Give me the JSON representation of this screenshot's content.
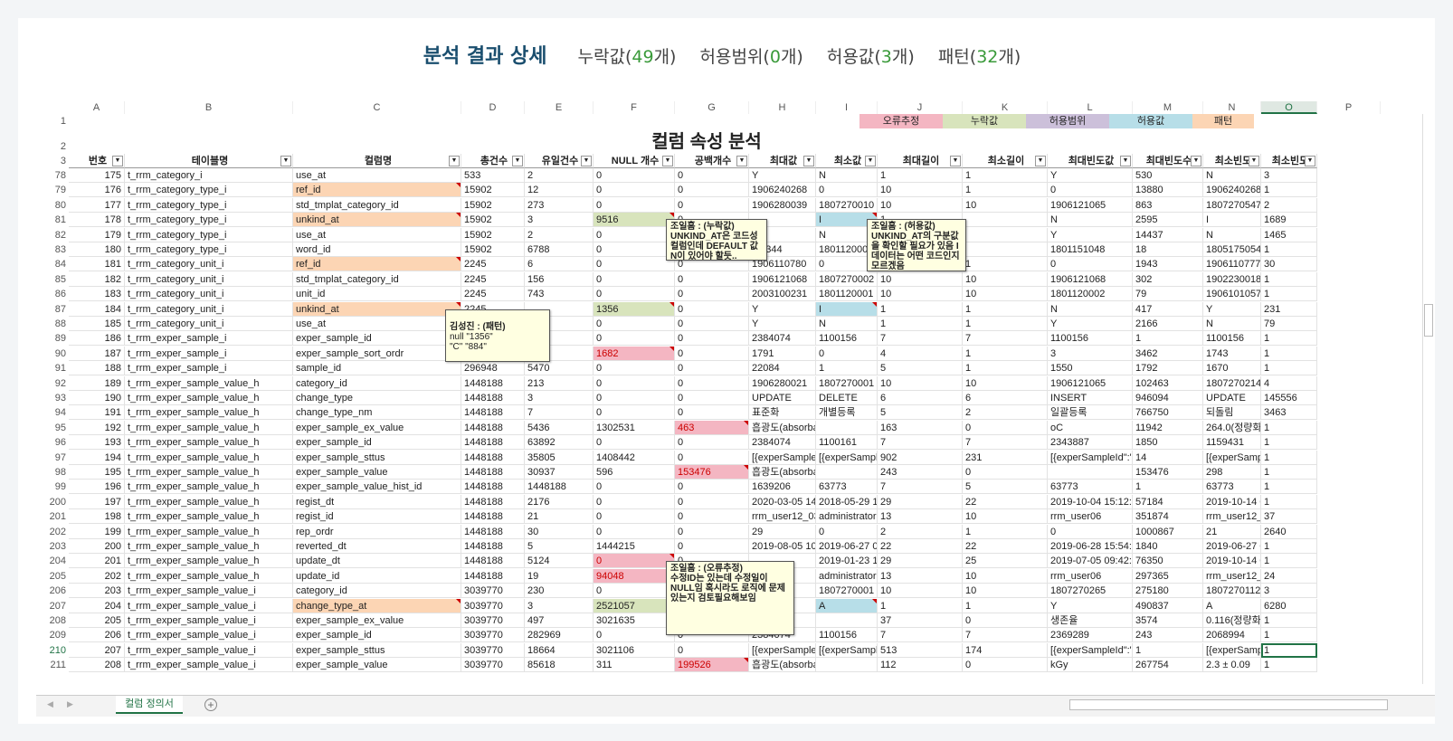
{
  "header": {
    "title": "분석 결과 상세",
    "stats": [
      {
        "label": "누락값(",
        "value": "49",
        "suffix": "개)"
      },
      {
        "label": "허용범위(",
        "value": "0",
        "suffix": "개)"
      },
      {
        "label": "허용값(",
        "value": "3",
        "suffix": "개)"
      },
      {
        "label": "패턴(",
        "value": "32",
        "suffix": "개)"
      }
    ]
  },
  "sheet": {
    "columns": [
      "A",
      "B",
      "C",
      "D",
      "E",
      "F",
      "G",
      "H",
      "I",
      "J",
      "K",
      "L",
      "M",
      "N",
      "O",
      "P"
    ],
    "title": "컬럼 속성 분석",
    "legend": [
      "오류추정",
      "누락값",
      "허용범위",
      "허용값",
      "패턴"
    ],
    "headers": [
      "번호",
      "테이블명",
      "컬럼명",
      "총건수",
      "유일건수",
      "NULL 개수",
      "공백개수",
      "최대값",
      "최소값",
      "최대길이",
      "최소길이",
      "최대빈도값",
      "최대빈도수",
      "최소빈도",
      "최소빈도"
    ],
    "row_label_1": "1",
    "row_label_2": "2",
    "row_label_3": "3",
    "rows": [
      {
        "r": "78",
        "v": [
          "175",
          "t_rrm_category_i",
          "use_at",
          "533",
          "2",
          "0",
          "0",
          "Y",
          "N",
          "1",
          "1",
          "Y",
          "530",
          "N",
          "3"
        ]
      },
      {
        "r": "79",
        "v": [
          "176",
          "t_rrm_category_type_i",
          "ref_id",
          "15902",
          "12",
          "0",
          "0",
          "1906240268",
          "0",
          "10",
          "1",
          "0",
          "13880",
          "1906240268",
          "1"
        ]
      },
      {
        "r": "80",
        "v": [
          "177",
          "t_rrm_category_type_i",
          "std_tmplat_category_id",
          "15902",
          "273",
          "0",
          "0",
          "1906280039",
          "1807270010",
          "10",
          "10",
          "1906121065",
          "863",
          "1807270547",
          "2"
        ]
      },
      {
        "r": "81",
        "v": [
          "178",
          "t_rrm_category_type_i",
          "unkind_at",
          "15902",
          "3",
          "9516",
          "0",
          "",
          "I",
          "1",
          "",
          "N",
          "2595",
          "I",
          "1689"
        ]
      },
      {
        "r": "82",
        "v": [
          "179",
          "t_rrm_category_type_i",
          "use_at",
          "15902",
          "2",
          "0",
          "0",
          "",
          "N",
          "1",
          "",
          "Y",
          "14437",
          "N",
          "1465"
        ]
      },
      {
        "r": "83",
        "v": [
          "180",
          "t_rrm_category_type_i",
          "word_id",
          "15902",
          "6788",
          "0",
          "0",
          "...2344",
          "1801120002",
          "10",
          "",
          "1801151048",
          "18",
          "1805175054",
          "1"
        ]
      },
      {
        "r": "84",
        "v": [
          "181",
          "t_rrm_category_unit_i",
          "ref_id",
          "2245",
          "6",
          "0",
          "0",
          "1906110780",
          "0",
          "10",
          "1",
          "0",
          "1943",
          "1906110777",
          "30"
        ]
      },
      {
        "r": "85",
        "v": [
          "182",
          "t_rrm_category_unit_i",
          "std_tmplat_category_id",
          "2245",
          "156",
          "0",
          "0",
          "1906121068",
          "1807270002",
          "10",
          "10",
          "1906121068",
          "302",
          "1902230018",
          "1"
        ]
      },
      {
        "r": "86",
        "v": [
          "183",
          "t_rrm_category_unit_i",
          "unit_id",
          "2245",
          "743",
          "0",
          "0",
          "2003100231",
          "1801120001",
          "10",
          "10",
          "1801120002",
          "79",
          "1906101057",
          "1"
        ]
      },
      {
        "r": "87",
        "v": [
          "184",
          "t_rrm_category_unit_i",
          "unkind_at",
          "2245",
          "",
          "1356",
          "0",
          "Y",
          "I",
          "1",
          "1",
          "N",
          "417",
          "Y",
          "231"
        ]
      },
      {
        "r": "88",
        "v": [
          "185",
          "t_rrm_category_unit_i",
          "use_at",
          "2245",
          "",
          "0",
          "0",
          "Y",
          "N",
          "1",
          "1",
          "Y",
          "2166",
          "N",
          "79"
        ]
      },
      {
        "r": "89",
        "v": [
          "186",
          "t_rrm_exper_sample_i",
          "exper_sample_id",
          "296948",
          "",
          "0",
          "0",
          "2384074",
          "1100156",
          "7",
          "7",
          "1100156",
          "1",
          "1100156",
          "1"
        ]
      },
      {
        "r": "90",
        "v": [
          "187",
          "t_rrm_exper_sample_i",
          "exper_sample_sort_ordr",
          "296948",
          "1792",
          "1682",
          "0",
          "1791",
          "0",
          "4",
          "1",
          "3",
          "3462",
          "1743",
          "1"
        ]
      },
      {
        "r": "91",
        "v": [
          "188",
          "t_rrm_exper_sample_i",
          "sample_id",
          "296948",
          "5470",
          "0",
          "0",
          "22084",
          "1",
          "5",
          "1",
          "1550",
          "1792",
          "1670",
          "1"
        ]
      },
      {
        "r": "92",
        "v": [
          "189",
          "t_rrm_exper_sample_value_h",
          "category_id",
          "1448188",
          "213",
          "0",
          "0",
          "1906280021",
          "1807270001",
          "10",
          "10",
          "1906121065",
          "102463",
          "1807270214",
          "4"
        ]
      },
      {
        "r": "93",
        "v": [
          "190",
          "t_rrm_exper_sample_value_h",
          "change_type",
          "1448188",
          "3",
          "0",
          "0",
          "UPDATE",
          "DELETE",
          "6",
          "6",
          "INSERT",
          "946094",
          "UPDATE",
          "145556"
        ]
      },
      {
        "r": "94",
        "v": [
          "191",
          "t_rrm_exper_sample_value_h",
          "change_type_nm",
          "1448188",
          "7",
          "0",
          "0",
          "표준화",
          "개별등록",
          "5",
          "2",
          "일괄등록",
          "766750",
          "되돌림",
          "3463"
        ]
      },
      {
        "r": "95",
        "v": [
          "192",
          "t_rrm_exper_sample_value_h",
          "exper_sample_ex_value",
          "1448188",
          "5436",
          "1302531",
          "463",
          "흡광도(absorbance)",
          "",
          "163",
          "0",
          "oC",
          "11942",
          "264.0(정량화_",
          "1"
        ]
      },
      {
        "r": "96",
        "v": [
          "193",
          "t_rrm_exper_sample_value_h",
          "exper_sample_id",
          "1448188",
          "63892",
          "0",
          "0",
          "2384074",
          "1100161",
          "7",
          "7",
          "2343887",
          "1850",
          "1159431",
          "1"
        ]
      },
      {
        "r": "97",
        "v": [
          "194",
          "t_rrm_exper_sample_value_h",
          "exper_sample_sttus",
          "1448188",
          "35805",
          "1408442",
          "0",
          "[{experSample",
          "[{experSample",
          "902",
          "231",
          "[{experSampleId\":\"2",
          "14",
          "[{experSample",
          "1"
        ]
      },
      {
        "r": "98",
        "v": [
          "195",
          "t_rrm_exper_sample_value_h",
          "exper_sample_value",
          "1448188",
          "30937",
          "596",
          "153476",
          "흡광도(absorbance)",
          "",
          "243",
          "0",
          "",
          "153476",
          "298",
          "1"
        ]
      },
      {
        "r": "99",
        "v": [
          "196",
          "t_rrm_exper_sample_value_h",
          "exper_sample_value_hist_id",
          "1448188",
          "1448188",
          "0",
          "0",
          "1639206",
          "63773",
          "7",
          "5",
          "63773",
          "1",
          "63773",
          "1"
        ]
      },
      {
        "r": "200",
        "v": [
          "197",
          "t_rrm_exper_sample_value_h",
          "regist_dt",
          "1448188",
          "2176",
          "0",
          "0",
          "2020-03-05 14:",
          "2018-05-29 18:",
          "29",
          "22",
          "2019-10-04 15:12:14",
          "57184",
          "2019-10-14 0",
          "1"
        ]
      },
      {
        "r": "201",
        "v": [
          "198",
          "t_rrm_exper_sample_value_h",
          "regist_id",
          "1448188",
          "21",
          "0",
          "0",
          "rrm_user12_03",
          "administrator",
          "13",
          "10",
          "rrm_user06",
          "351874",
          "rrm_user12_0",
          "37"
        ]
      },
      {
        "r": "202",
        "v": [
          "199",
          "t_rrm_exper_sample_value_h",
          "rep_ordr",
          "1448188",
          "30",
          "0",
          "0",
          "29",
          "0",
          "2",
          "1",
          "0",
          "1000867",
          "21",
          "2640"
        ]
      },
      {
        "r": "203",
        "v": [
          "200",
          "t_rrm_exper_sample_value_h",
          "reverted_dt",
          "1448188",
          "5",
          "1444215",
          "0",
          "2019-08-05 10",
          "2019-06-27 08:",
          "22",
          "22",
          "2019-06-28 15:54:2",
          "1840",
          "2019-06-27 0",
          "1"
        ]
      },
      {
        "r": "204",
        "v": [
          "201",
          "t_rrm_exper_sample_value_h",
          "update_dt",
          "1448188",
          "5124",
          "0",
          "0",
          "",
          "2019-01-23 16:",
          "29",
          "25",
          "2019-07-05 09:42:5",
          "76350",
          "2019-10-14 0",
          "1"
        ]
      },
      {
        "r": "205",
        "v": [
          "202",
          "t_rrm_exper_sample_value_h",
          "update_id",
          "1448188",
          "19",
          "94048",
          "0",
          "",
          "administrator",
          "13",
          "10",
          "rrm_user06",
          "297365",
          "rrm_user12_0",
          "24"
        ]
      },
      {
        "r": "206",
        "v": [
          "203",
          "t_rrm_exper_sample_value_i",
          "category_id",
          "3039770",
          "230",
          "0",
          "0",
          "",
          "1807270001",
          "10",
          "10",
          "1807270265",
          "275180",
          "1807270112",
          "3"
        ]
      },
      {
        "r": "207",
        "v": [
          "204",
          "t_rrm_exper_sample_value_i",
          "change_type_at",
          "3039770",
          "3",
          "2521057",
          "0",
          "",
          "A",
          "1",
          "1",
          "Y",
          "490837",
          "A",
          "6280"
        ]
      },
      {
        "r": "208",
        "v": [
          "205",
          "t_rrm_exper_sample_value_i",
          "exper_sample_ex_value",
          "3039770",
          "497",
          "3021635",
          "264",
          "...",
          "",
          "37",
          "0",
          "생존율",
          "3574",
          "0.116(정량화_",
          "1"
        ]
      },
      {
        "r": "209",
        "v": [
          "206",
          "t_rrm_exper_sample_value_i",
          "exper_sample_id",
          "3039770",
          "282969",
          "0",
          "0",
          "2384074",
          "1100156",
          "7",
          "7",
          "2369289",
          "243",
          "2068994",
          "1"
        ]
      },
      {
        "r": "210",
        "v": [
          "207",
          "t_rrm_exper_sample_value_i",
          "exper_sample_sttus",
          "3039770",
          "18664",
          "3021106",
          "0",
          "[{experSample",
          "[{experSample",
          "513",
          "174",
          "[{experSampleId\":\"1",
          "1",
          "[{experSample",
          "1"
        ]
      },
      {
        "r": "211",
        "v": [
          "208",
          "t_rrm_exper_sample_value_i",
          "exper_sample_value",
          "3039770",
          "85618",
          "311",
          "199526",
          "흡광도(absorbance)",
          "",
          "112",
          "0",
          "kGy",
          "267754",
          "2.3 ± 0.09",
          "1"
        ]
      }
    ],
    "notes": [
      {
        "title": "조일흠 : (누락값)",
        "text": "UNKIND_AT은 코드성 컬럼인데 DEFAULT 값 N이 있어야 할듯.."
      },
      {
        "title": "조일흠 : (허용값)",
        "text": "UNKIND_AT의 구분값을 확인할 필요가 있음 I 데이터는 어떤 코드인지 모르겠음"
      },
      {
        "title": "김성진 : (패턴)",
        "text": "null  \"1356\"\n\"C\" \"884\""
      },
      {
        "title": "조일흠 : (오류추정)",
        "text": "수정ID는 있는데 수정일이 NULL임 혹시라도 로직에 문제 있는지 검토필요해보임"
      }
    ],
    "tab_label": "컬럼 정의서",
    "add_tab": "+"
  },
  "colors": {
    "error": "#f4b6c2",
    "missing": "#d8e4bc",
    "range": "#ccc0da",
    "allowed": "#b7dee8",
    "pattern": "#fcd5b4",
    "excel_green": "#217346"
  }
}
